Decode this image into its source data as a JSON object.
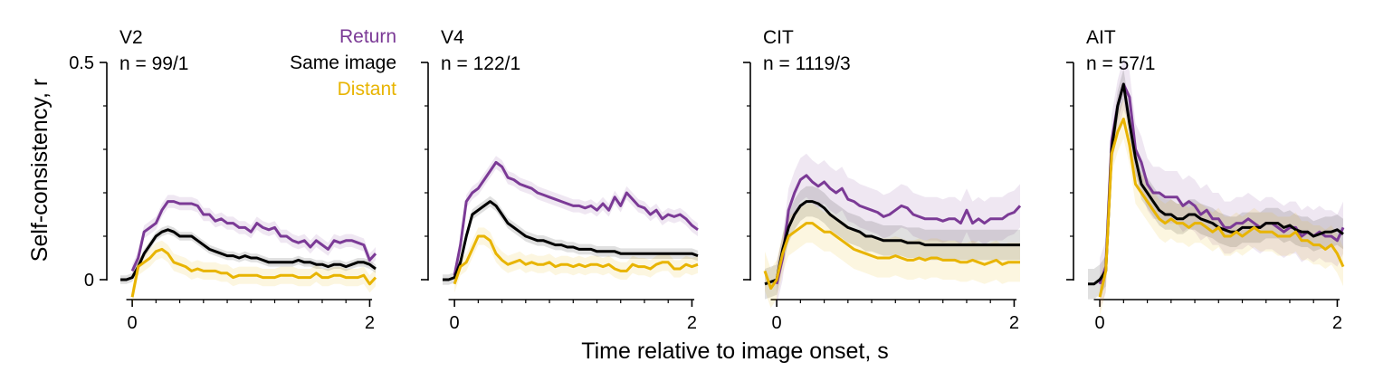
{
  "figure": {
    "ylabel": "Self-consistency, r",
    "xlabel": "Time relative to image onset, s",
    "legend": [
      {
        "label": "Return",
        "color": "#7B3A96"
      },
      {
        "label": "Same image",
        "color": "#000000"
      },
      {
        "label": "Distant",
        "color": "#E8B400"
      }
    ]
  },
  "chart_data": [
    {
      "type": "line",
      "title": "V2",
      "subtitle": "n = 99/1",
      "xlim": [
        -0.1,
        2.05
      ],
      "ylim": [
        -0.04,
        0.5
      ],
      "xticks": [
        0,
        2
      ],
      "xtick_labels": [
        "0",
        "2"
      ],
      "yticks": [
        0,
        0.5
      ],
      "ytick_labels": [
        "0",
        "0.5"
      ],
      "show_ytick_labels": true,
      "legend_position": "top-right",
      "x": [
        -0.1,
        -0.05,
        0,
        0.05,
        0.1,
        0.15,
        0.2,
        0.25,
        0.3,
        0.35,
        0.4,
        0.45,
        0.5,
        0.55,
        0.6,
        0.65,
        0.7,
        0.75,
        0.8,
        0.85,
        0.9,
        0.95,
        1,
        1.05,
        1.1,
        1.15,
        1.2,
        1.25,
        1.3,
        1.35,
        1.4,
        1.45,
        1.5,
        1.55,
        1.6,
        1.65,
        1.7,
        1.75,
        1.8,
        1.85,
        1.9,
        1.95,
        2,
        2.05
      ],
      "series": [
        {
          "name": "Return",
          "color": "#7B3A96",
          "band": 0.015,
          "values": [
            null,
            null,
            0.02,
            0.05,
            0.11,
            0.12,
            0.13,
            0.16,
            0.18,
            0.18,
            0.175,
            0.175,
            0.175,
            0.17,
            0.15,
            0.15,
            0.135,
            0.14,
            0.13,
            0.13,
            0.12,
            0.12,
            0.11,
            0.13,
            0.12,
            0.115,
            0.12,
            0.1,
            0.1,
            0.09,
            0.085,
            0.09,
            0.075,
            0.09,
            0.08,
            0.07,
            0.09,
            0.085,
            0.09,
            0.09,
            0.085,
            0.08,
            0.045,
            0.06
          ]
        },
        {
          "name": "Same image",
          "color": "#000000",
          "band": 0.01,
          "values": [
            0,
            0,
            0.005,
            0.03,
            0.06,
            0.08,
            0.1,
            0.11,
            0.115,
            0.11,
            0.1,
            0.1,
            0.1,
            0.09,
            0.08,
            0.07,
            0.065,
            0.06,
            0.055,
            0.055,
            0.05,
            0.055,
            0.05,
            0.05,
            0.045,
            0.04,
            0.04,
            0.04,
            0.04,
            0.04,
            0.045,
            0.04,
            0.04,
            0.035,
            0.035,
            0.03,
            0.035,
            0.035,
            0.03,
            0.035,
            0.04,
            0.04,
            0.035,
            0.025
          ]
        },
        {
          "name": "Distant",
          "color": "#E8B400",
          "band": 0.02,
          "values": [
            null,
            null,
            -0.04,
            0.03,
            0.04,
            0.05,
            0.065,
            0.07,
            0.06,
            0.04,
            0.035,
            0.03,
            0.02,
            0.025,
            0.02,
            0.02,
            0.02,
            0.015,
            0.015,
            0.005,
            0.01,
            0.01,
            0.01,
            0.01,
            0.005,
            0.005,
            0.005,
            0.01,
            0.01,
            0.01,
            0.005,
            0.005,
            0.005,
            0.015,
            0.005,
            0.005,
            0.01,
            0.01,
            0.005,
            0.005,
            0.005,
            0.01,
            -0.01,
            0.005
          ]
        }
      ]
    },
    {
      "type": "line",
      "title": "V4",
      "subtitle": "n = 122/1",
      "xlim": [
        -0.1,
        2.05
      ],
      "ylim": [
        -0.04,
        0.5
      ],
      "xticks": [
        0,
        2
      ],
      "xtick_labels": [
        "0",
        "2"
      ],
      "yticks": [
        0,
        0.5
      ],
      "ytick_labels": [
        "",
        ""
      ],
      "show_ytick_labels": false,
      "x": [
        -0.1,
        -0.05,
        0,
        0.05,
        0.1,
        0.15,
        0.2,
        0.25,
        0.3,
        0.35,
        0.4,
        0.45,
        0.5,
        0.55,
        0.6,
        0.65,
        0.7,
        0.75,
        0.8,
        0.85,
        0.9,
        0.95,
        1,
        1.05,
        1.1,
        1.15,
        1.2,
        1.25,
        1.3,
        1.35,
        1.4,
        1.45,
        1.5,
        1.55,
        1.6,
        1.65,
        1.7,
        1.75,
        1.8,
        1.85,
        1.9,
        1.95,
        2,
        2.05
      ],
      "series": [
        {
          "name": "Return",
          "color": "#7B3A96",
          "band": 0.015,
          "values": [
            null,
            null,
            0.01,
            0.08,
            0.18,
            0.2,
            0.21,
            0.23,
            0.25,
            0.27,
            0.26,
            0.235,
            0.23,
            0.22,
            0.215,
            0.21,
            0.2,
            0.195,
            0.19,
            0.185,
            0.18,
            0.175,
            0.17,
            0.17,
            0.165,
            0.17,
            0.16,
            0.175,
            0.16,
            0.19,
            0.17,
            0.2,
            0.185,
            0.17,
            0.165,
            0.15,
            0.16,
            0.14,
            0.15,
            0.145,
            0.15,
            0.14,
            0.125,
            0.115
          ]
        },
        {
          "name": "Same image",
          "color": "#000000",
          "band": 0.012,
          "values": [
            0,
            0,
            0.005,
            0.04,
            0.1,
            0.15,
            0.16,
            0.17,
            0.18,
            0.17,
            0.15,
            0.13,
            0.12,
            0.11,
            0.1,
            0.095,
            0.09,
            0.09,
            0.085,
            0.08,
            0.08,
            0.075,
            0.075,
            0.07,
            0.07,
            0.07,
            0.065,
            0.065,
            0.065,
            0.065,
            0.06,
            0.06,
            0.06,
            0.06,
            0.06,
            0.06,
            0.06,
            0.06,
            0.06,
            0.06,
            0.06,
            0.06,
            0.06,
            0.055
          ]
        },
        {
          "name": "Distant",
          "color": "#E8B400",
          "band": 0.02,
          "values": [
            null,
            null,
            -0.01,
            0.03,
            0.04,
            0.07,
            0.1,
            0.1,
            0.09,
            0.06,
            0.045,
            0.035,
            0.04,
            0.045,
            0.035,
            0.04,
            0.035,
            0.035,
            0.04,
            0.03,
            0.035,
            0.035,
            0.03,
            0.035,
            0.03,
            0.035,
            0.035,
            0.03,
            0.035,
            0.025,
            0.02,
            0.02,
            0.035,
            0.03,
            0.03,
            0.025,
            0.035,
            0.04,
            0.04,
            0.025,
            0.025,
            0.035,
            0.03,
            0.035
          ]
        }
      ]
    },
    {
      "type": "line",
      "title": "CIT",
      "subtitle": "n = 1119/3",
      "xlim": [
        -0.1,
        2.05
      ],
      "ylim": [
        -0.04,
        0.5
      ],
      "xticks": [
        0,
        2
      ],
      "xtick_labels": [
        "0",
        "2"
      ],
      "yticks": [
        0,
        0.5
      ],
      "ytick_labels": [
        "",
        ""
      ],
      "show_ytick_labels": false,
      "x": [
        -0.1,
        -0.05,
        0,
        0.05,
        0.1,
        0.15,
        0.2,
        0.25,
        0.3,
        0.35,
        0.4,
        0.45,
        0.5,
        0.55,
        0.6,
        0.65,
        0.7,
        0.75,
        0.8,
        0.85,
        0.9,
        0.95,
        1,
        1.05,
        1.1,
        1.15,
        1.2,
        1.25,
        1.3,
        1.35,
        1.4,
        1.45,
        1.5,
        1.55,
        1.6,
        1.65,
        1.7,
        1.75,
        1.8,
        1.85,
        1.9,
        1.95,
        2,
        2.05
      ],
      "series": [
        {
          "name": "Return",
          "color": "#7B3A96",
          "band": 0.05,
          "values": [
            null,
            null,
            -0.01,
            0.05,
            0.16,
            0.2,
            0.23,
            0.24,
            0.225,
            0.215,
            0.225,
            0.21,
            0.2,
            0.21,
            0.185,
            0.18,
            0.17,
            0.165,
            0.16,
            0.155,
            0.145,
            0.15,
            0.16,
            0.17,
            0.165,
            0.15,
            0.145,
            0.14,
            0.14,
            0.14,
            0.135,
            0.14,
            0.14,
            0.13,
            0.16,
            0.13,
            0.14,
            0.13,
            0.14,
            0.14,
            0.14,
            0.15,
            0.155,
            0.17
          ]
        },
        {
          "name": "Same image",
          "color": "#000000",
          "band": 0.035,
          "values": [
            -0.01,
            -0.005,
            0,
            0.07,
            0.12,
            0.15,
            0.17,
            0.18,
            0.18,
            0.175,
            0.165,
            0.15,
            0.14,
            0.13,
            0.12,
            0.115,
            0.11,
            0.1,
            0.1,
            0.095,
            0.09,
            0.09,
            0.09,
            0.09,
            0.085,
            0.085,
            0.085,
            0.08,
            0.08,
            0.08,
            0.08,
            0.08,
            0.08,
            0.08,
            0.08,
            0.08,
            0.08,
            0.08,
            0.08,
            0.08,
            0.08,
            0.08,
            0.08,
            0.08
          ]
        },
        {
          "name": "Distant",
          "color": "#E8B400",
          "band": 0.045,
          "values": [
            0.02,
            -0.02,
            0,
            0.06,
            0.1,
            0.11,
            0.12,
            0.13,
            0.13,
            0.12,
            0.11,
            0.11,
            0.1,
            0.09,
            0.08,
            0.07,
            0.065,
            0.06,
            0.055,
            0.05,
            0.05,
            0.05,
            0.055,
            0.05,
            0.045,
            0.045,
            0.05,
            0.045,
            0.05,
            0.05,
            0.045,
            0.045,
            0.045,
            0.04,
            0.04,
            0.045,
            0.04,
            0.035,
            0.04,
            0.045,
            0.035,
            0.04,
            0.04,
            0.04
          ]
        }
      ]
    },
    {
      "type": "line",
      "title": "AIT",
      "subtitle": "n = 57/1",
      "xlim": [
        -0.1,
        2.05
      ],
      "ylim": [
        -0.04,
        0.5
      ],
      "xticks": [
        0,
        2
      ],
      "xtick_labels": [
        "0",
        "2"
      ],
      "yticks": [
        0,
        0.5
      ],
      "ytick_labels": [
        "",
        ""
      ],
      "show_ytick_labels": false,
      "x": [
        -0.1,
        -0.05,
        0,
        0.05,
        0.1,
        0.15,
        0.2,
        0.25,
        0.3,
        0.35,
        0.4,
        0.45,
        0.5,
        0.55,
        0.6,
        0.65,
        0.7,
        0.75,
        0.8,
        0.85,
        0.9,
        0.95,
        1,
        1.05,
        1.1,
        1.15,
        1.2,
        1.25,
        1.3,
        1.35,
        1.4,
        1.45,
        1.5,
        1.55,
        1.6,
        1.65,
        1.7,
        1.75,
        1.8,
        1.85,
        1.9,
        1.95,
        2,
        2.05
      ],
      "series": [
        {
          "name": "Return",
          "color": "#7B3A96",
          "band": 0.06,
          "values": [
            null,
            null,
            -0.01,
            0.03,
            0.32,
            0.4,
            0.45,
            0.42,
            0.3,
            0.27,
            0.22,
            0.2,
            0.2,
            0.19,
            0.19,
            0.19,
            0.17,
            0.18,
            0.17,
            0.15,
            0.16,
            0.14,
            0.14,
            0.12,
            0.12,
            0.13,
            0.13,
            0.14,
            0.13,
            0.12,
            0.13,
            0.13,
            0.12,
            0.11,
            0.12,
            0.12,
            0.1,
            0.11,
            0.1,
            0.11,
            0.1,
            0.1,
            0.09,
            0.12
          ]
        },
        {
          "name": "Same image",
          "color": "#000000",
          "band": 0.035,
          "values": [
            -0.01,
            -0.01,
            0,
            0.02,
            0.3,
            0.4,
            0.45,
            0.36,
            0.28,
            0.22,
            0.2,
            0.18,
            0.16,
            0.15,
            0.15,
            0.14,
            0.14,
            0.15,
            0.15,
            0.14,
            0.135,
            0.13,
            0.12,
            0.115,
            0.11,
            0.11,
            0.12,
            0.12,
            0.12,
            0.12,
            0.13,
            0.13,
            0.13,
            0.12,
            0.125,
            0.115,
            0.11,
            0.11,
            0.1,
            0.105,
            0.11,
            0.11,
            0.115,
            0.105
          ]
        },
        {
          "name": "Distant",
          "color": "#E8B400",
          "band": 0.045,
          "values": [
            null,
            null,
            -0.04,
            0.02,
            0.29,
            0.34,
            0.37,
            0.31,
            0.22,
            0.2,
            0.18,
            0.16,
            0.14,
            0.13,
            0.14,
            0.13,
            0.13,
            0.12,
            0.13,
            0.13,
            0.12,
            0.11,
            0.12,
            0.1,
            0.1,
            0.11,
            0.1,
            0.11,
            0.12,
            0.11,
            0.11,
            0.11,
            0.1,
            0.1,
            0.1,
            0.11,
            0.09,
            0.09,
            0.08,
            0.08,
            0.07,
            0.08,
            0.06,
            0.03
          ]
        }
      ]
    }
  ]
}
